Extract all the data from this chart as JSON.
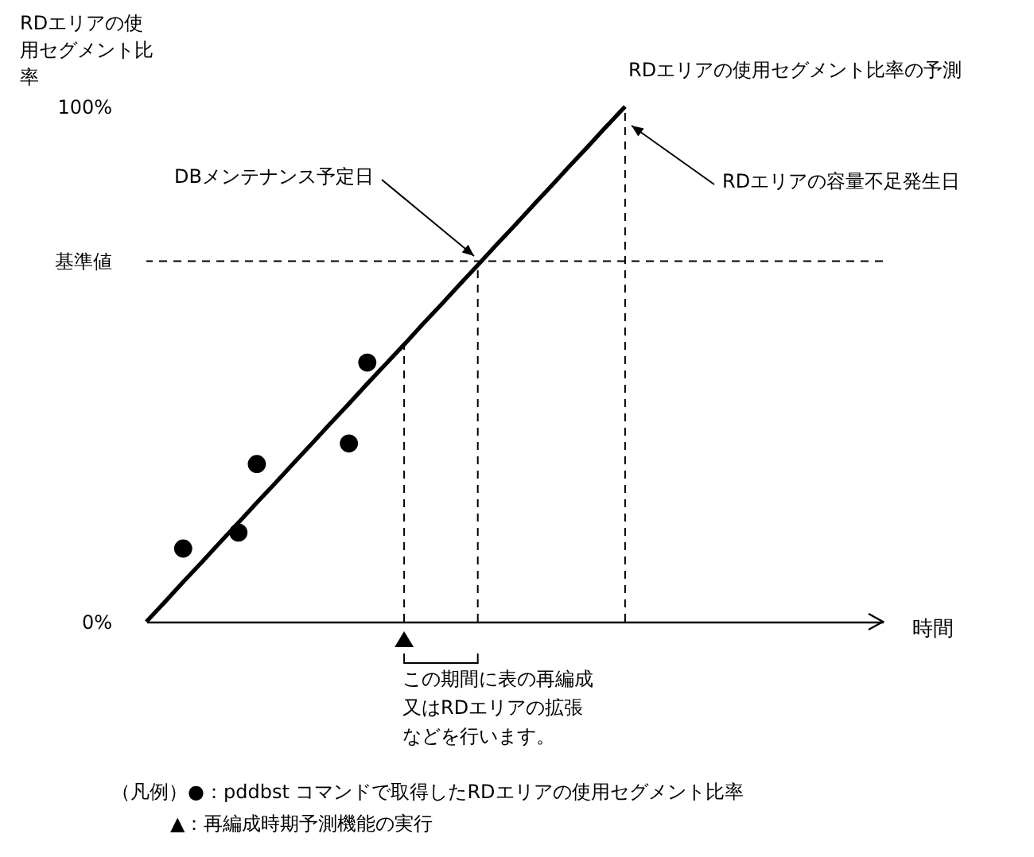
{
  "chart_data": {
    "type": "scatter",
    "ylabel": "RDエリアの使用セグメント比率",
    "xlabel": "時間",
    "ylim": [
      0,
      100
    ],
    "yticks": [
      {
        "value": 0,
        "label": "0%"
      },
      {
        "value": 70,
        "label": "基準値"
      },
      {
        "value": 100,
        "label": "100%"
      }
    ],
    "categories": [
      null,
      null,
      null,
      null,
      null,
      null,
      null,
      null,
      null,
      null,
      null,
      null,
      null,
      null,
      null,
      null,
      null,
      null,
      null,
      null,
      null,
      null,
      null,
      null,
      null,
      null,
      null,
      null,
      null,
      null,
      null,
      null,
      null,
      null,
      null,
      null,
      null,
      null,
      null,
      null,
      null
    ],
    "tick_labels": "y",
    "grid": false,
    "series": [
      {
        "color": "#000000",
        "marker": "circle",
        "values": [
          null,
          null,
          14.2,
          null,
          null,
          17.3,
          30.6,
          null,
          null,
          null,
          null,
          34.6,
          50.3,
          null,
          null,
          null,
          null,
          null,
          null,
          null,
          null,
          null,
          null,
          null,
          null,
          null,
          null,
          null,
          null,
          null,
          null,
          null,
          null,
          null,
          null,
          null,
          null,
          null,
          null,
          null,
          null
        ]
      },
      {
        "type": "line",
        "color": "#000000",
        "line_style": "solid",
        "marker": "none",
        "values": [
          0,
          3.8,
          7.7,
          11.5,
          15.4,
          19.2,
          23.1,
          26.9,
          30.8,
          34.6,
          38.5,
          42.3,
          46.2,
          50,
          53.8,
          57.7,
          61.5,
          65.4,
          69.2,
          73.1,
          76.9,
          80.8,
          84.6,
          88.5,
          92.3,
          96.2,
          100,
          null,
          null,
          null,
          null,
          null,
          null,
          null,
          null,
          null,
          null,
          null,
          null,
          null,
          null
        ]
      }
    ],
    "ref_lines": [
      {
        "axis": "y",
        "value": 70,
        "line_style": "dashed",
        "color": "#000000"
      }
    ],
    "annotations": [
      "DBメンテナンス予定日",
      "RDエリアの容量不足発生日",
      "RDエリアの使用セグメント比率の予測",
      "この期間に表の再編成又はRDエリアの拡張などを行います。",
      "（凡例）●：pddbst コマンドで取得したRDエリアの使用セグメント比率",
      "▲：再編成時期予測機能の実行"
    ]
  }
}
